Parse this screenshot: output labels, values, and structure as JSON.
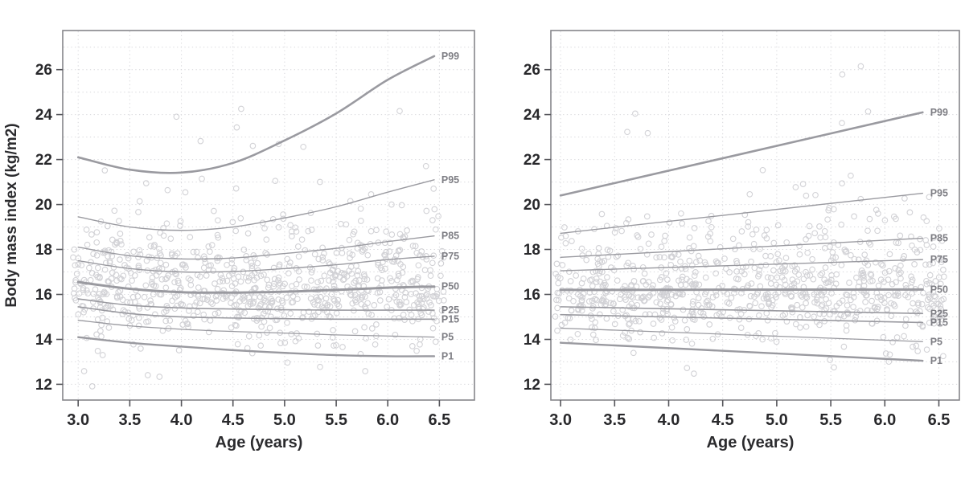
{
  "figure": {
    "description": "Two side-by-side BMI-for-age percentile charts with scatter of observations",
    "xlabel": "Age (years)",
    "ylabel": "Body mass index (kg/m2)"
  },
  "style": {
    "background": "#ffffff",
    "frame_color": "#85858a",
    "grid_color": "#d7d7db",
    "tick_color": "#55555a",
    "tick_text_color": "#28282b",
    "scatter_color": "#c7c7cc",
    "curve_color": "#9a9aa0",
    "curve_label_color": "#7e7e84"
  },
  "chart_data": [
    {
      "type": "scatter",
      "title": "",
      "xlabel": "Age (years)",
      "ylabel": "Body mass index (kg/m2)",
      "x_ticks": [
        "3.0",
        "3.5",
        "4.0",
        "4.5",
        "5.0",
        "5.5",
        "6.0",
        "6.5"
      ],
      "y_ticks": [
        12,
        14,
        16,
        18,
        20,
        22,
        24,
        26
      ],
      "x_range": [
        2.85,
        6.84
      ],
      "y_range": [
        11.3,
        27.74
      ],
      "grid": {
        "x_step": 0.5,
        "y_step": 1,
        "y_grid_min": 12,
        "y_grid_max": 27,
        "style": "dotted"
      },
      "legend_position": "curve-end-labels-inside-right",
      "curve_shape": "smooth-curved",
      "label_x": 6.52,
      "percentiles": {
        "knots_x": [
          3.0,
          3.5,
          4.0,
          4.5,
          5.0,
          5.5,
          6.0,
          6.45
        ],
        "series": [
          {
            "label": "P99",
            "values": [
              22.1,
              21.55,
              21.42,
              21.85,
              22.85,
              24.05,
              25.55,
              26.6
            ],
            "lw": 2.6
          },
          {
            "label": "P95",
            "values": [
              19.45,
              19.0,
              18.85,
              19.0,
              19.4,
              19.9,
              20.55,
              21.1
            ],
            "lw": 1.4
          },
          {
            "label": "P85",
            "values": [
              18.1,
              17.72,
              17.58,
              17.62,
              17.82,
              18.05,
              18.35,
              18.6
            ],
            "lw": 1.4
          },
          {
            "label": "P75",
            "values": [
              17.5,
              17.15,
              17.0,
              17.02,
              17.15,
              17.32,
              17.55,
              17.7
            ],
            "lw": 1.4
          },
          {
            "label": "P50",
            "values": [
              16.55,
              16.25,
              16.1,
              16.08,
              16.12,
              16.2,
              16.3,
              16.35
            ],
            "lw": 3.0
          },
          {
            "label": "P25",
            "values": [
              15.8,
              15.52,
              15.4,
              15.35,
              15.32,
              15.3,
              15.3,
              15.3
            ],
            "lw": 1.6
          },
          {
            "label": "P15",
            "values": [
              15.45,
              15.15,
              15.0,
              14.95,
              14.92,
              14.9,
              14.9,
              14.9
            ],
            "lw": 1.6
          },
          {
            "label": "P5",
            "values": [
              14.85,
              14.6,
              14.45,
              14.35,
              14.28,
              14.2,
              14.15,
              14.1
            ],
            "lw": 1.3
          },
          {
            "label": "P1",
            "values": [
              14.1,
              13.85,
              13.68,
              13.52,
              13.4,
              13.3,
              13.25,
              13.25
            ],
            "lw": 2.4
          }
        ]
      },
      "scatter": {
        "count": 820,
        "seed": 13,
        "x_min": 2.95,
        "x_max": 6.55,
        "sigma_low": 0.92,
        "sigma_high": 1.32,
        "age_widening": 0.06,
        "outlier_high_rate": 0.045,
        "outlier_low_rate": 0.012,
        "y_min": 11.5,
        "y_max": 27.4
      }
    },
    {
      "type": "scatter",
      "title": "",
      "xlabel": "Age (years)",
      "ylabel": "",
      "x_ticks": [
        "3.0",
        "3.5",
        "4.0",
        "4.5",
        "5.0",
        "5.5",
        "6.0",
        "6.5"
      ],
      "y_ticks": [
        12,
        14,
        16,
        18,
        20,
        22,
        24,
        26
      ],
      "x_range": [
        2.91,
        6.69
      ],
      "y_range": [
        11.3,
        27.74
      ],
      "grid": {
        "x_step": 0.5,
        "y_step": 1,
        "y_grid_min": 12,
        "y_grid_max": 27,
        "style": "dotted"
      },
      "legend_position": "curve-end-labels-inside-right",
      "curve_shape": "linear",
      "label_x": 6.42,
      "percentiles": {
        "knots_x": [
          3.0,
          6.35
        ],
        "series": [
          {
            "label": "P99",
            "values": [
              20.4,
              24.1
            ],
            "lw": 2.6
          },
          {
            "label": "P95",
            "values": [
              18.72,
              20.5
            ],
            "lw": 1.4
          },
          {
            "label": "P85",
            "values": [
              17.65,
              18.5
            ],
            "lw": 1.4
          },
          {
            "label": "P75",
            "values": [
              17.05,
              17.55
            ],
            "lw": 1.4
          },
          {
            "label": "P50",
            "values": [
              16.2,
              16.22
            ],
            "lw": 3.0
          },
          {
            "label": "P25",
            "values": [
              15.45,
              15.15
            ],
            "lw": 1.6
          },
          {
            "label": "P15",
            "values": [
              15.1,
              14.75
            ],
            "lw": 1.6
          },
          {
            "label": "P5",
            "values": [
              14.5,
              13.9
            ],
            "lw": 1.3
          },
          {
            "label": "P1",
            "values": [
              13.85,
              13.05
            ],
            "lw": 2.4
          }
        ]
      },
      "scatter": {
        "count": 820,
        "seed": 47,
        "x_min": 2.95,
        "x_max": 6.55,
        "sigma_low": 0.92,
        "sigma_high": 1.32,
        "age_widening": 0.06,
        "outlier_high_rate": 0.045,
        "outlier_low_rate": 0.012,
        "y_min": 11.5,
        "y_max": 27.4
      }
    }
  ]
}
